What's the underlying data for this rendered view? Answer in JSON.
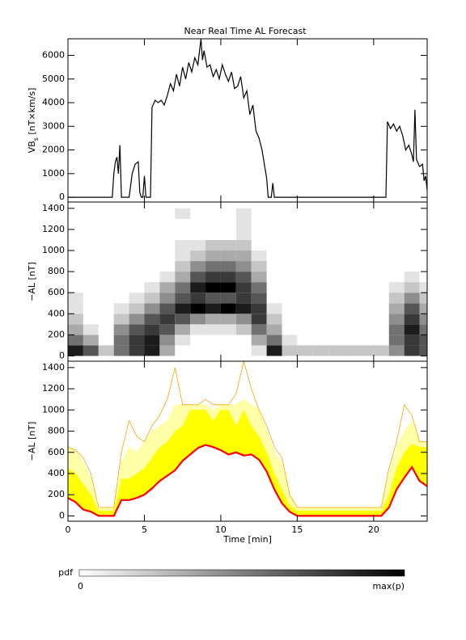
{
  "chart_data": [
    {
      "type": "line",
      "title": "Near Real Time AL Forecast",
      "ylabel": [
        "VB",
        "s",
        " [nT×km/s]"
      ],
      "color": "#000000",
      "xlim": [
        0,
        23.5
      ],
      "xticks": [
        0,
        5,
        10,
        15,
        20
      ],
      "xtick_labels": false,
      "ylim": [
        -200,
        6700
      ],
      "yticks": [
        0,
        1000,
        2000,
        3000,
        4000,
        5000,
        6000
      ],
      "x": [
        0,
        2.9,
        3.0,
        3.1,
        3.2,
        3.3,
        3.4,
        3.5,
        3.6,
        4.0,
        4.2,
        4.4,
        4.6,
        4.7,
        4.8,
        4.9,
        5.0,
        5.1,
        5.3,
        5.4,
        5.5,
        5.7,
        5.9,
        6.1,
        6.3,
        6.5,
        6.7,
        6.9,
        7.1,
        7.3,
        7.5,
        7.7,
        7.9,
        8.1,
        8.3,
        8.5,
        8.7,
        8.8,
        8.9,
        9.1,
        9.3,
        9.5,
        9.7,
        9.9,
        10.1,
        10.3,
        10.5,
        10.7,
        10.9,
        11.1,
        11.3,
        11.5,
        11.7,
        11.9,
        12.1,
        12.3,
        12.5,
        12.7,
        12.9,
        13.0,
        13.1,
        13.3,
        13.4,
        13.5,
        13.6,
        20.8,
        20.9,
        21.1,
        21.3,
        21.5,
        21.7,
        21.9,
        22.1,
        22.3,
        22.5,
        22.6,
        22.7,
        22.8,
        23.0,
        23.2,
        23.3,
        23.4,
        23.5
      ],
      "values": [
        0,
        0,
        1000,
        1500,
        1700,
        1000,
        2200,
        0,
        0,
        0,
        1000,
        1400,
        1500,
        200,
        0,
        0,
        900,
        0,
        0,
        0,
        3800,
        4100,
        4000,
        4100,
        3900,
        4300,
        4800,
        4500,
        5200,
        4700,
        5500,
        5000,
        5700,
        5300,
        5900,
        5600,
        6700,
        5800,
        6200,
        5500,
        5600,
        5100,
        5400,
        5000,
        5600,
        5200,
        4900,
        5300,
        4600,
        4700,
        5100,
        4200,
        4500,
        3500,
        3900,
        2800,
        2500,
        2000,
        1200,
        800,
        0,
        0,
        600,
        0,
        0,
        0,
        3200,
        2900,
        3100,
        2800,
        3000,
        2600,
        2000,
        2200,
        1800,
        1500,
        3700,
        1600,
        1300,
        1400,
        700,
        900,
        300
      ]
    },
    {
      "type": "heatmap",
      "ylabel": [
        "−AL [nT]"
      ],
      "xlim": [
        0,
        23.5
      ],
      "xticks": [
        0,
        5,
        10,
        15,
        20
      ],
      "xtick_labels": false,
      "ylim": [
        -50,
        1460
      ],
      "yticks": [
        0,
        200,
        400,
        600,
        800,
        1000,
        1200,
        1400
      ],
      "zmax": 9,
      "xbins": [
        0,
        1,
        2,
        3,
        4,
        5,
        6,
        7,
        8,
        9,
        10,
        11,
        12,
        13,
        14,
        15,
        16,
        17,
        18,
        19,
        20,
        21,
        22,
        23,
        24
      ],
      "ybins": [
        0,
        100,
        200,
        300,
        400,
        500,
        600,
        700,
        800,
        900,
        1000,
        1100,
        1200,
        1300,
        1400
      ],
      "z": [
        [
          8,
          5,
          3,
          2,
          1,
          1,
          0,
          0,
          0,
          0,
          0,
          0,
          0,
          0
        ],
        [
          6,
          3,
          1,
          0,
          0,
          0,
          0,
          0,
          0,
          0,
          0,
          0,
          0,
          0
        ],
        [
          2,
          0,
          0,
          0,
          0,
          0,
          0,
          0,
          0,
          0,
          0,
          0,
          0,
          0
        ],
        [
          5,
          5,
          4,
          2,
          1,
          0,
          0,
          0,
          0,
          0,
          0,
          0,
          0,
          0
        ],
        [
          7,
          7,
          6,
          4,
          2,
          1,
          0,
          0,
          0,
          0,
          0,
          0,
          0,
          0
        ],
        [
          8,
          8,
          7,
          6,
          4,
          2,
          1,
          0,
          0,
          0,
          0,
          0,
          0,
          0
        ],
        [
          3,
          4,
          6,
          7,
          6,
          4,
          3,
          1,
          0,
          0,
          0,
          0,
          0,
          0
        ],
        [
          0,
          1,
          3,
          6,
          8,
          6,
          5,
          3,
          2,
          1,
          1,
          0,
          0,
          1
        ],
        [
          0,
          0,
          1,
          4,
          9,
          7,
          8,
          6,
          4,
          2,
          1,
          0,
          0,
          0
        ],
        [
          0,
          0,
          1,
          3,
          8,
          6,
          9,
          7,
          5,
          3,
          2,
          0,
          0,
          0
        ],
        [
          0,
          0,
          1,
          3,
          9,
          6,
          9,
          7,
          5,
          3,
          2,
          0,
          0,
          0
        ],
        [
          0,
          0,
          2,
          4,
          8,
          7,
          7,
          6,
          4,
          3,
          2,
          1,
          1,
          1
        ],
        [
          1,
          3,
          5,
          7,
          7,
          6,
          5,
          3,
          2,
          1,
          0,
          0,
          0,
          0
        ],
        [
          8,
          5,
          3,
          2,
          1,
          0,
          0,
          0,
          0,
          0,
          0,
          0,
          0,
          0
        ],
        [
          2,
          1,
          0,
          0,
          0,
          0,
          0,
          0,
          0,
          0,
          0,
          0,
          0,
          0
        ],
        [
          2,
          0,
          0,
          0,
          0,
          0,
          0,
          0,
          0,
          0,
          0,
          0,
          0,
          0
        ],
        [
          2,
          0,
          0,
          0,
          0,
          0,
          0,
          0,
          0,
          0,
          0,
          0,
          0,
          0
        ],
        [
          2,
          0,
          0,
          0,
          0,
          0,
          0,
          0,
          0,
          0,
          0,
          0,
          0,
          0
        ],
        [
          2,
          0,
          0,
          0,
          0,
          0,
          0,
          0,
          0,
          0,
          0,
          0,
          0,
          0
        ],
        [
          2,
          0,
          0,
          0,
          0,
          0,
          0,
          0,
          0,
          0,
          0,
          0,
          0,
          0
        ],
        [
          2,
          0,
          0,
          0,
          0,
          0,
          0,
          0,
          0,
          0,
          0,
          0,
          0,
          0
        ],
        [
          4,
          5,
          5,
          4,
          3,
          2,
          1,
          0,
          0,
          0,
          0,
          0,
          0,
          0
        ],
        [
          7,
          7,
          8,
          7,
          6,
          4,
          2,
          1,
          0,
          0,
          0,
          0,
          0,
          0
        ],
        [
          6,
          6,
          5,
          4,
          3,
          2,
          1,
          0,
          0,
          0,
          0,
          0,
          0,
          0
        ]
      ]
    },
    {
      "type": "band",
      "ylabel": [
        "−AL [nT]"
      ],
      "xlabel": "Time [min]",
      "xlim": [
        0,
        23.5
      ],
      "xticks": [
        0,
        5,
        10,
        15,
        20
      ],
      "xtick_labels": true,
      "ylim": [
        -50,
        1460
      ],
      "yticks": [
        0,
        200,
        400,
        600,
        800,
        1000,
        1200,
        1400
      ],
      "x": [
        0,
        0.5,
        1,
        1.5,
        2,
        2.5,
        3,
        3.5,
        4,
        4.5,
        5,
        5.5,
        6,
        6.5,
        7,
        7.5,
        8,
        8.5,
        9,
        9.5,
        10,
        10.5,
        11,
        11.5,
        12,
        12.5,
        13,
        13.5,
        14,
        14.5,
        15,
        15.5,
        16,
        16.5,
        17,
        17.5,
        18,
        18.5,
        19,
        19.5,
        20,
        20.5,
        21,
        21.5,
        22,
        22.5,
        23,
        23.5
      ],
      "median": {
        "color": "#ff0000",
        "values": [
          170,
          130,
          60,
          40,
          0,
          0,
          0,
          150,
          150,
          170,
          200,
          260,
          330,
          380,
          430,
          520,
          580,
          640,
          670,
          650,
          620,
          580,
          600,
          570,
          580,
          530,
          420,
          250,
          120,
          40,
          0,
          0,
          0,
          0,
          0,
          0,
          0,
          0,
          0,
          0,
          0,
          0,
          80,
          250,
          360,
          460,
          330,
          280
        ]
      },
      "inner": {
        "color": "#ffff00",
        "values": [
          450,
          400,
          300,
          200,
          50,
          50,
          50,
          350,
          350,
          400,
          450,
          550,
          650,
          700,
          800,
          850,
          1000,
          1000,
          1000,
          900,
          1000,
          1000,
          850,
          1000,
          850,
          750,
          600,
          400,
          250,
          100,
          50,
          50,
          50,
          50,
          50,
          50,
          50,
          50,
          50,
          50,
          50,
          50,
          200,
          450,
          600,
          680,
          650,
          650
        ]
      },
      "outer": {
        "color": "#ffffa8",
        "values": [
          650,
          620,
          500,
          350,
          80,
          80,
          80,
          500,
          650,
          600,
          700,
          800,
          850,
          900,
          1050,
          1050,
          1050,
          1050,
          1050,
          1000,
          1050,
          1050,
          1050,
          1100,
          1050,
          1000,
          800,
          600,
          500,
          200,
          80,
          80,
          80,
          80,
          80,
          80,
          80,
          80,
          80,
          80,
          80,
          80,
          400,
          650,
          800,
          900,
          700,
          700
        ]
      },
      "max": {
        "color": "#ffa500",
        "values": [
          650,
          620,
          550,
          400,
          80,
          80,
          80,
          600,
          900,
          750,
          700,
          850,
          950,
          1100,
          1400,
          1050,
          1050,
          1050,
          1100,
          1050,
          1050,
          1050,
          1150,
          1460,
          1200,
          1000,
          850,
          650,
          550,
          200,
          80,
          80,
          80,
          80,
          80,
          80,
          80,
          80,
          80,
          80,
          80,
          80,
          450,
          700,
          1050,
          950,
          700,
          700
        ]
      }
    }
  ],
  "colorbar": {
    "title": "pdf",
    "min_label": "0",
    "max_label": "max(p)"
  }
}
